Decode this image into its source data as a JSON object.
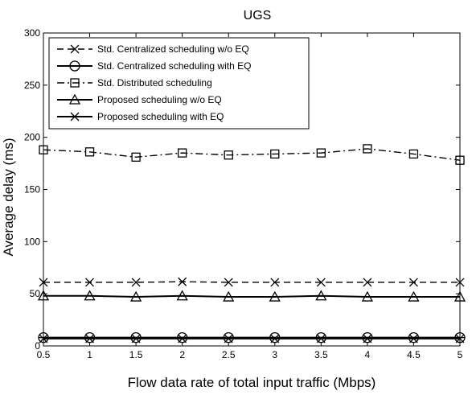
{
  "chart_data": {
    "type": "line",
    "title": "UGS",
    "xlabel": "Flow data rate of total input traffic (Mbps)",
    "ylabel": "Average delay (ms)",
    "xlim": [
      0.5,
      5
    ],
    "ylim": [
      0,
      300
    ],
    "x_ticks": [
      0.5,
      1,
      1.5,
      2,
      2.5,
      3,
      3.5,
      4,
      4.5,
      5
    ],
    "y_ticks": [
      0,
      50,
      100,
      150,
      200,
      250,
      300
    ],
    "grid": false,
    "legend_position": "top-left",
    "x": [
      0.5,
      1,
      1.5,
      2,
      2.5,
      3,
      3.5,
      4,
      4.5,
      5
    ],
    "series": [
      {
        "name": "Std. Centralized scheduling w/o EQ",
        "marker": "x",
        "line_style": "dashed",
        "values": [
          61,
          61,
          61,
          61.5,
          61,
          61,
          61,
          61,
          61,
          61
        ]
      },
      {
        "name": "Std. Centralized scheduling with EQ",
        "marker": "circle-minus",
        "line_style": "solid",
        "values": [
          8,
          8,
          8,
          8,
          8,
          8,
          8,
          8,
          8,
          8
        ]
      },
      {
        "name": "Std. Distributed scheduling",
        "marker": "square",
        "line_style": "dashdot",
        "values": [
          188,
          186,
          181,
          185,
          183,
          184,
          185,
          189,
          184,
          178
        ]
      },
      {
        "name": "Proposed scheduling w/o EQ",
        "marker": "triangle",
        "line_style": "solid",
        "values": [
          48,
          48,
          47,
          48,
          47,
          47,
          48,
          47,
          47,
          47
        ]
      },
      {
        "name": "Proposed scheduling with EQ",
        "marker": "x",
        "line_style": "solid",
        "values": [
          7,
          7,
          7,
          7,
          7,
          7,
          7,
          7,
          7,
          7
        ]
      }
    ]
  }
}
